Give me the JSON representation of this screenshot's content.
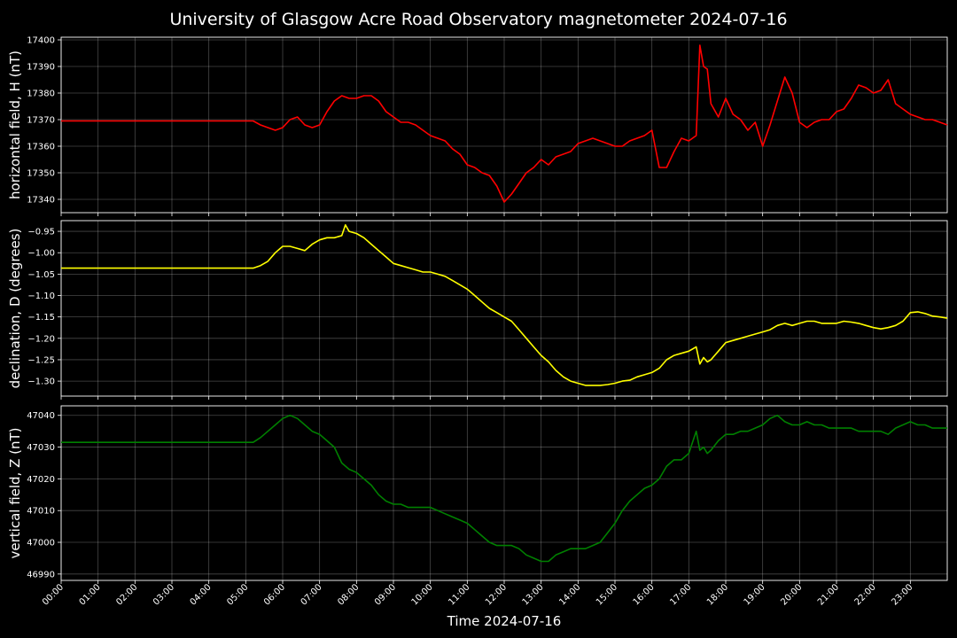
{
  "chart_data": {
    "type": "line",
    "title": "University of Glasgow Acre Road Observatory magnetometer 2024-07-16",
    "xlabel": "Time 2024-07-16",
    "x_unit": "hours",
    "xlim": [
      0,
      24
    ],
    "x_ticks": [
      "00:00",
      "01:00",
      "02:00",
      "03:00",
      "04:00",
      "05:00",
      "06:00",
      "07:00",
      "08:00",
      "09:00",
      "10:00",
      "11:00",
      "12:00",
      "13:00",
      "14:00",
      "15:00",
      "16:00",
      "17:00",
      "18:00",
      "19:00",
      "20:00",
      "21:00",
      "22:00",
      "23:00"
    ],
    "grid": true,
    "panels": [
      {
        "ylabel": "horizontal field, H (nT)",
        "color": "#ff0000",
        "ylim": [
          17335,
          17401
        ],
        "y_ticks": [
          17340,
          17350,
          17360,
          17370,
          17380,
          17390,
          17400
        ],
        "tick_decimals": 0,
        "x": [
          0,
          5.2,
          5.4,
          5.6,
          5.8,
          6.0,
          6.2,
          6.4,
          6.6,
          6.8,
          7.0,
          7.2,
          7.4,
          7.6,
          7.8,
          8.0,
          8.2,
          8.4,
          8.6,
          8.8,
          9.0,
          9.2,
          9.4,
          9.6,
          9.8,
          10.0,
          10.2,
          10.4,
          10.6,
          10.8,
          11.0,
          11.2,
          11.4,
          11.6,
          11.8,
          12.0,
          12.2,
          12.4,
          12.6,
          12.8,
          13.0,
          13.2,
          13.4,
          13.6,
          13.8,
          14.0,
          14.2,
          14.4,
          14.6,
          14.8,
          15.0,
          15.2,
          15.4,
          15.6,
          15.8,
          16.0,
          16.2,
          16.4,
          16.6,
          16.8,
          17.0,
          17.2,
          17.3,
          17.4,
          17.5,
          17.6,
          17.8,
          18.0,
          18.2,
          18.4,
          18.6,
          18.8,
          19.0,
          19.2,
          19.4,
          19.6,
          19.8,
          20.0,
          20.2,
          20.4,
          20.6,
          20.8,
          21.0,
          21.2,
          21.4,
          21.6,
          21.8,
          22.0,
          22.2,
          22.4,
          22.6,
          22.8,
          23.0,
          23.2,
          23.4,
          23.6,
          23.8,
          24.0
        ],
        "values": [
          17369.5,
          17369.5,
          17368,
          17367,
          17366,
          17367,
          17370,
          17371,
          17368,
          17367,
          17368,
          17373,
          17377,
          17379,
          17378,
          17378,
          17379,
          17379,
          17377,
          17373,
          17371,
          17369,
          17369,
          17368,
          17366,
          17364,
          17363,
          17362,
          17359,
          17357,
          17353,
          17352,
          17350,
          17349,
          17345,
          17339,
          17342,
          17346,
          17350,
          17352,
          17355,
          17353,
          17356,
          17357,
          17358,
          17361,
          17362,
          17363,
          17362,
          17361,
          17360,
          17360,
          17362,
          17363,
          17364,
          17366,
          17352,
          17352,
          17358,
          17363,
          17362,
          17364,
          17398,
          17390,
          17389,
          17376,
          17371,
          17378,
          17372,
          17370,
          17366,
          17369,
          17360,
          17368,
          17377,
          17386,
          17380,
          17369,
          17367,
          17369,
          17370,
          17370,
          17373,
          17374,
          17378,
          17383,
          17382,
          17380,
          17381,
          17385,
          17376,
          17374,
          17372,
          17371,
          17370,
          17370,
          17369,
          17368
        ]
      },
      {
        "ylabel": "declination, D (degrees)",
        "color": "#ffff00",
        "ylim": [
          -1.335,
          -0.925
        ],
        "y_ticks": [
          -1.3,
          -1.25,
          -1.2,
          -1.15,
          -1.1,
          -1.05,
          -1.0,
          -0.95
        ],
        "tick_decimals": 2,
        "x": [
          0,
          5.2,
          5.4,
          5.6,
          5.8,
          6.0,
          6.2,
          6.4,
          6.6,
          6.8,
          7.0,
          7.2,
          7.4,
          7.6,
          7.7,
          7.8,
          8.0,
          8.2,
          8.4,
          8.6,
          8.8,
          9.0,
          9.2,
          9.4,
          9.6,
          9.8,
          10.0,
          10.2,
          10.4,
          10.6,
          10.8,
          11.0,
          11.2,
          11.4,
          11.6,
          11.8,
          12.0,
          12.2,
          12.4,
          12.6,
          12.8,
          13.0,
          13.2,
          13.4,
          13.6,
          13.8,
          14.0,
          14.2,
          14.4,
          14.6,
          14.8,
          15.0,
          15.2,
          15.4,
          15.6,
          15.8,
          16.0,
          16.2,
          16.4,
          16.6,
          16.8,
          17.0,
          17.2,
          17.3,
          17.4,
          17.5,
          17.6,
          17.8,
          18.0,
          18.2,
          18.4,
          18.6,
          18.8,
          19.0,
          19.2,
          19.4,
          19.6,
          19.8,
          20.0,
          20.2,
          20.4,
          20.6,
          20.8,
          21.0,
          21.2,
          21.4,
          21.6,
          21.8,
          22.0,
          22.2,
          22.4,
          22.6,
          22.8,
          23.0,
          23.2,
          23.4,
          23.6,
          23.8,
          24.0
        ],
        "values": [
          -1.036,
          -1.036,
          -1.03,
          -1.02,
          -1.0,
          -0.985,
          -0.985,
          -0.99,
          -0.995,
          -0.98,
          -0.97,
          -0.965,
          -0.965,
          -0.96,
          -0.935,
          -0.95,
          -0.955,
          -0.965,
          -0.98,
          -0.995,
          -1.01,
          -1.025,
          -1.03,
          -1.035,
          -1.04,
          -1.045,
          -1.045,
          -1.05,
          -1.055,
          -1.065,
          -1.075,
          -1.085,
          -1.1,
          -1.115,
          -1.13,
          -1.14,
          -1.15,
          -1.16,
          -1.18,
          -1.2,
          -1.22,
          -1.24,
          -1.255,
          -1.275,
          -1.29,
          -1.3,
          -1.305,
          -1.31,
          -1.31,
          -1.31,
          -1.308,
          -1.305,
          -1.3,
          -1.298,
          -1.29,
          -1.285,
          -1.28,
          -1.27,
          -1.25,
          -1.24,
          -1.235,
          -1.23,
          -1.22,
          -1.26,
          -1.245,
          -1.255,
          -1.25,
          -1.23,
          -1.21,
          -1.205,
          -1.2,
          -1.195,
          -1.19,
          -1.185,
          -1.18,
          -1.17,
          -1.165,
          -1.17,
          -1.165,
          -1.16,
          -1.16,
          -1.165,
          -1.165,
          -1.165,
          -1.16,
          -1.162,
          -1.165,
          -1.17,
          -1.175,
          -1.178,
          -1.175,
          -1.17,
          -1.16,
          -1.14,
          -1.138,
          -1.142,
          -1.148,
          -1.15,
          -1.153
        ]
      },
      {
        "ylabel": "vertical field, Z (nT)",
        "color": "#008000",
        "ylim": [
          46988,
          47043
        ],
        "y_ticks": [
          46990,
          47000,
          47010,
          47020,
          47030,
          47040
        ],
        "tick_decimals": 0,
        "x": [
          0,
          5.2,
          5.4,
          5.6,
          5.8,
          6.0,
          6.2,
          6.4,
          6.6,
          6.8,
          7.0,
          7.2,
          7.4,
          7.6,
          7.8,
          8.0,
          8.2,
          8.4,
          8.6,
          8.8,
          9.0,
          9.2,
          9.4,
          9.6,
          9.8,
          10.0,
          10.2,
          10.4,
          10.6,
          10.8,
          11.0,
          11.2,
          11.4,
          11.6,
          11.8,
          12.0,
          12.2,
          12.4,
          12.6,
          12.8,
          13.0,
          13.2,
          13.4,
          13.6,
          13.8,
          14.0,
          14.2,
          14.4,
          14.6,
          14.8,
          15.0,
          15.2,
          15.4,
          15.6,
          15.8,
          16.0,
          16.2,
          16.4,
          16.6,
          16.8,
          17.0,
          17.2,
          17.3,
          17.4,
          17.5,
          17.6,
          17.8,
          18.0,
          18.2,
          18.4,
          18.6,
          18.8,
          19.0,
          19.2,
          19.4,
          19.6,
          19.8,
          20.0,
          20.2,
          20.4,
          20.6,
          20.8,
          21.0,
          21.2,
          21.4,
          21.6,
          21.8,
          22.0,
          22.2,
          22.4,
          22.6,
          22.8,
          23.0,
          23.2,
          23.4,
          23.6,
          23.8,
          24.0
        ],
        "values": [
          47031.5,
          47031.5,
          47033,
          47035,
          47037,
          47039,
          47040,
          47039,
          47037,
          47035,
          47034,
          47032,
          47030,
          47025,
          47023,
          47022,
          47020,
          47018,
          47015,
          47013,
          47012,
          47012,
          47011,
          47011,
          47011,
          47011,
          47010,
          47009,
          47008,
          47007,
          47006,
          47004,
          47002,
          47000,
          46999,
          46999,
          46999,
          46998,
          46996,
          46995,
          46994,
          46994,
          46996,
          46997,
          46998,
          46998,
          46998,
          46999,
          47000,
          47003,
          47006,
          47010,
          47013,
          47015,
          47017,
          47018,
          47020,
          47024,
          47026,
          47026,
          47028,
          47035,
          47029,
          47030,
          47028,
          47029,
          47032,
          47034,
          47034,
          47035,
          47035,
          47036,
          47037,
          47039,
          47040,
          47038,
          47037,
          47037,
          47038,
          47037,
          47037,
          47036,
          47036,
          47036,
          47036,
          47035,
          47035,
          47035,
          47035,
          47034,
          47036,
          47037,
          47038,
          47037,
          47037,
          47036,
          47036,
          47036
        ]
      }
    ]
  }
}
